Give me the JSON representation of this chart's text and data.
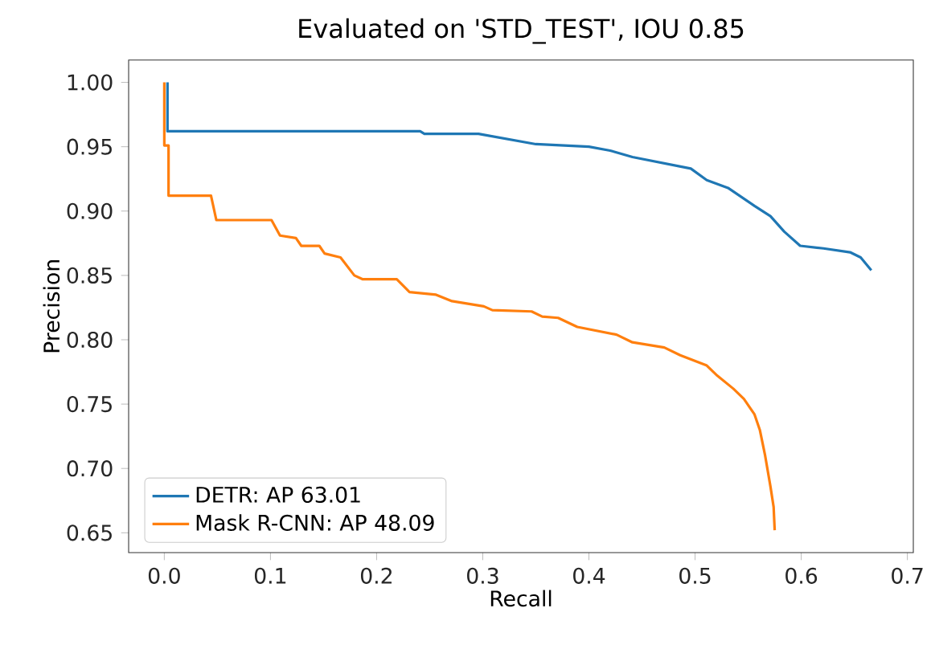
{
  "chart_data": {
    "type": "line",
    "title": "Evaluated on 'STD_TEST', IOU 0.85",
    "xlabel": "Recall",
    "ylabel": "Precision",
    "xlim": [
      -0.0336,
      0.7056
    ],
    "ylim": [
      0.6346,
      1.0174
    ],
    "xticks": [
      {
        "value": 0,
        "label": "0.0"
      },
      0.1,
      0.2,
      0.3,
      0.4,
      0.5,
      0.6,
      0.7
    ],
    "yticks": [
      {
        "value": 0.65,
        "label": "0.65"
      },
      {
        "value": 0.7,
        "label": "0.70"
      },
      {
        "value": 0.75,
        "label": "0.75"
      },
      {
        "value": 0.8,
        "label": "0.80"
      },
      {
        "value": 0.85,
        "label": "0.85"
      },
      {
        "value": 0.9,
        "label": "0.90"
      },
      {
        "value": 0.95,
        "label": "0.95"
      },
      {
        "value": 1.0,
        "label": "1.00"
      }
    ],
    "legend": "bottom left",
    "grid": false,
    "marker": "none",
    "line_style": "solid",
    "series": [
      {
        "name": "DETR: AP 63.01",
        "color": "#1f77b4",
        "x": [
          0.003,
          0.003,
          0.241,
          0.245,
          0.296,
          0.35,
          0.4,
          0.42,
          0.441,
          0.496,
          0.511,
          0.531,
          0.556,
          0.571,
          0.584,
          0.599,
          0.621,
          0.646,
          0.656,
          0.666
        ],
        "values": [
          1.0,
          0.962,
          0.962,
          0.96,
          0.96,
          0.952,
          0.95,
          0.947,
          0.942,
          0.933,
          0.924,
          0.918,
          0.904,
          0.896,
          0.884,
          0.873,
          0.871,
          0.868,
          0.864,
          0.854
        ]
      },
      {
        "name": "Mask R-CNN: AP 48.09",
        "color": "#ff7f0e",
        "x": [
          0.0,
          0.0,
          0.004,
          0.004,
          0.044,
          0.049,
          0.101,
          0.109,
          0.124,
          0.129,
          0.146,
          0.151,
          0.166,
          0.179,
          0.187,
          0.219,
          0.231,
          0.256,
          0.271,
          0.301,
          0.309,
          0.346,
          0.356,
          0.371,
          0.389,
          0.426,
          0.441,
          0.471,
          0.486,
          0.511,
          0.521,
          0.536,
          0.546,
          0.556,
          0.561,
          0.566,
          0.571,
          0.574,
          0.575
        ],
        "values": [
          1.0,
          0.951,
          0.951,
          0.912,
          0.912,
          0.893,
          0.893,
          0.881,
          0.879,
          0.873,
          0.873,
          0.867,
          0.864,
          0.85,
          0.847,
          0.847,
          0.837,
          0.835,
          0.83,
          0.826,
          0.823,
          0.822,
          0.818,
          0.817,
          0.81,
          0.804,
          0.798,
          0.794,
          0.788,
          0.78,
          0.772,
          0.762,
          0.754,
          0.742,
          0.73,
          0.71,
          0.686,
          0.67,
          0.652
        ]
      }
    ]
  }
}
